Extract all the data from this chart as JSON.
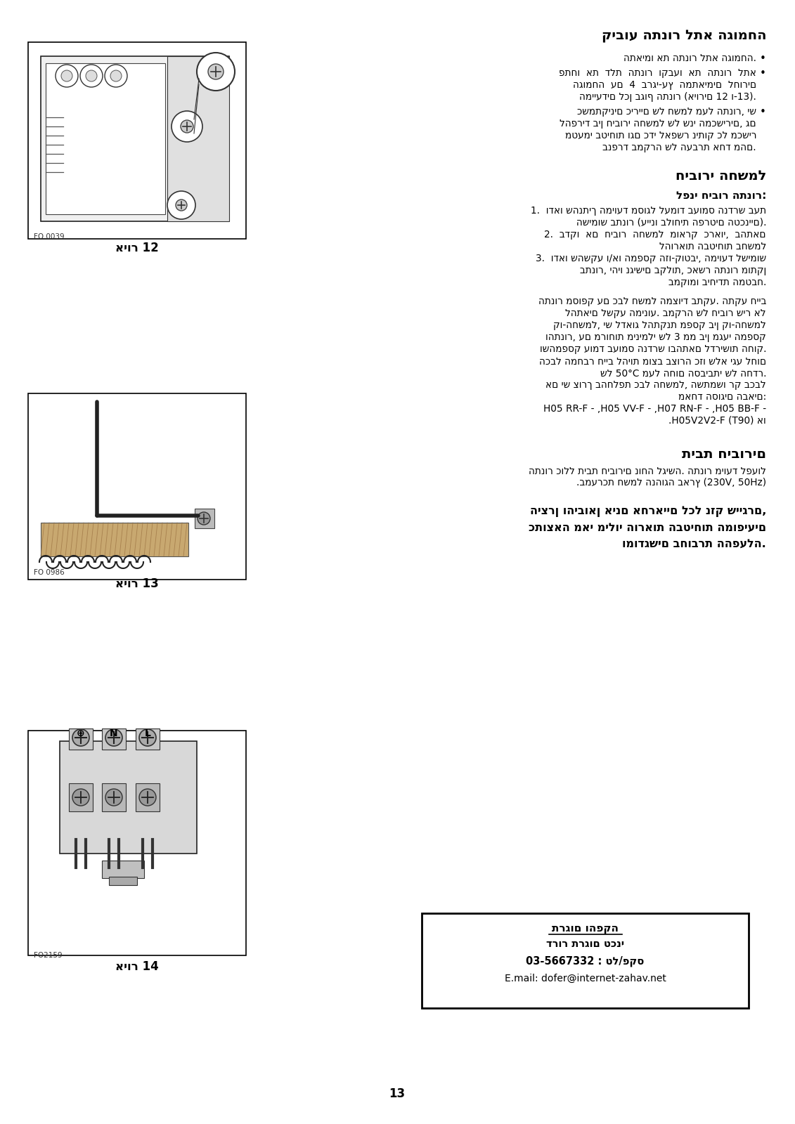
{
  "page_bg": "#ffffff",
  "page_num": "13",
  "title1": "קיבוע התנור לתא הגומחה",
  "title2": "חיבורי החשמל",
  "title3": "תיבת חיבורים",
  "subtitle_before": "לפני חיבור התנור:",
  "fig12_label": "איור 12",
  "fig13_label": "איור 13",
  "fig14_label": "איור 14",
  "fig12_code": "FO 0039",
  "fig13_code": "FO 0986",
  "fig14_code": "FO2159",
  "text_section1": [
    "התאימו את התנור לתא הגומחה.",
    "פתחו  את  דלת  התנור  וקבעו  את  התנור  לתא",
    "הגומחה  עם  4  ברגי-עץ  המתאימים  לחורים",
    "המייעדים לכן בגוף התנור (איורים 12 ו-13).",
    "כשמתקינים כיריים של חשמל מעל התנור, יש",
    "להפריד בין חיבורי החשמל של שני המכשירים, גם",
    "מטעמי בטיחות וגם כדי לאפשר ניתוק כל מכשיר",
    "בנפרד במקרה של העברת אחד מהם."
  ],
  "text_section2_items": [
    "1.  ודאו שהנתיך המיועד מסוגל לעמוד בעומס הנדרש בעת",
    "     השימוש בתנור (עיינו בלוחית הפרטים הטכניים).",
    "2.  בדקו  אם  חיבור  החשמל  מוארק  כראוי,  בהתאם",
    "     להוראות הבטיחות בחשמל",
    "3.  ודאו שהשקע ו/או המפסק הזו-קוטבי, המיועד לשימוש",
    "     בתנור, יהיו נגישים בקלות, כאשר התנור מותקן",
    "     במקומו ביחידת המטבח."
  ],
  "text_para": [
    "התנור מסופק עם כבל חשמל המצויד בתקע. התקע חייב",
    "להתאים לשקע המינוע. במקרה של חיבור שיר אל",
    "קו-החשמל, יש לדאוג להתקנת מפסק בין קו-החשמל",
    "והתנור, עם מרוחות מינימלי של 3 ממ בין מגעי המפסק",
    "ושהמפסק עומד בעומס הנדרש ובהתאם לדרישות החוק.",
    "הכבל המחבר חייב להיות מוצב בצורה כזו שלא יגע לחום",
    "של 50°C מעל החום הסביבתי של החדר.",
    "אם יש צורך בהחלפת כבל החשמל, השתמשו רק בכבל",
    "מאחד הסוגים הבאים:",
    "H05 RR-F - ,H05 VV-F - ,H07 RN-F - ,H05 BB-F -",
    ".H05V2V2-F (T90) או"
  ],
  "text_section3": [
    "התנור כולל תיבת חיבורים נוחה לגישה. התנור מיועד לפעול",
    ".במערכת חשמל הנהוגה בארץ (230V, 50Hz)"
  ],
  "warning_text": [
    "היצרן והיבואן אינם אחראיים לכל נזק שייגרם,",
    "כתוצאה מאי מילוי הוראות הבטיחות המופיעים",
    "ומודגשים בחוברת ההפעלה."
  ],
  "contact_box": {
    "title": "תרגום והפקה",
    "line1": "דרור תרגום טכני",
    "line2": "03-5667332 : טל/פקס",
    "line3": "E.mail: dofer@internet-zahav.net"
  }
}
